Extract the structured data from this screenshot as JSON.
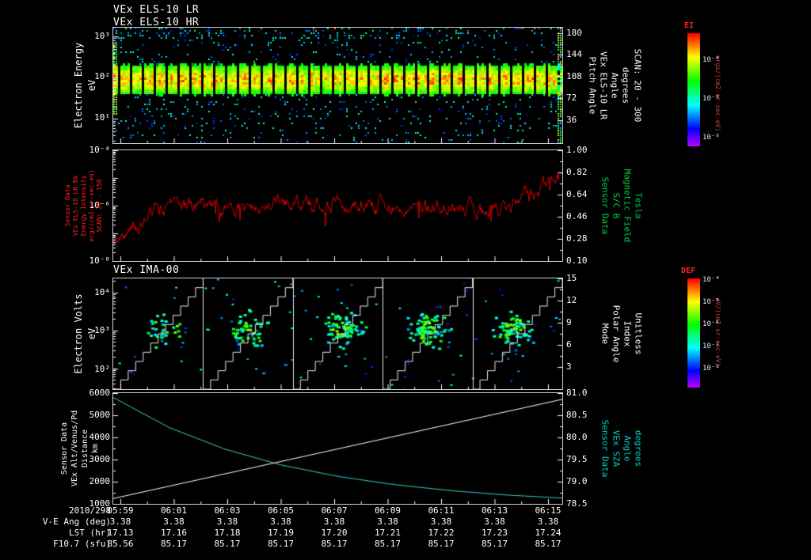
{
  "header": {
    "titles_els": [
      "VEx ELS-10 LR",
      "VEx ELS-10 HR"
    ],
    "title_ima": "VEx IMA-00"
  },
  "colors": {
    "red_line": "#cc0000",
    "red_label": "#ff2222",
    "green_label": "#00cc44",
    "cyan_label": "#00cccc",
    "unit_red": "#cc4444",
    "white": "#ffffff"
  },
  "panels": {
    "els": {
      "left_label": [
        "Electron Energy",
        "eV"
      ],
      "left_ticks": [
        "10³",
        "10²",
        "10¹"
      ],
      "right_ticks": [
        "180",
        "144",
        "108",
        "72",
        "36"
      ],
      "right_label": [
        "Pitch Angle",
        "VEx ELS-10 LR",
        "Angle",
        "degrees",
        "SCAN: 20 - 300"
      ]
    },
    "bk": {
      "left_label": [
        "Sensor Data",
        "VEx ELS-10 LR Bk",
        "Energy Intensity",
        "erg/(cm2-sr-sec-eV)",
        "SCAN: 20 - 150"
      ],
      "left_ticks": [
        "10⁻⁴",
        "10⁻⁶",
        "10⁻⁸"
      ],
      "right_ticks": [
        "1.00",
        "0.82",
        "0.64",
        "0.46",
        "0.28",
        "0.10"
      ],
      "right_label": [
        "Sensor Data",
        "S/C B",
        "Magnetic Field",
        "Tesla"
      ]
    },
    "ima": {
      "left_label": [
        "Electron Volts",
        "eV"
      ],
      "left_ticks": [
        "10⁴",
        "10³",
        "10²"
      ],
      "right_ticks": [
        "15",
        "12",
        "9",
        "6",
        "3"
      ],
      "right_label": [
        "Mode",
        "Polar Angle",
        "Index",
        "Unitless"
      ]
    },
    "traj": {
      "left_label": [
        "Sensor Data",
        "VEx Alt/Venus/Pd",
        "Distance",
        "km"
      ],
      "left_ticks": [
        "6000",
        "5000",
        "4000",
        "3000",
        "2000",
        "1000"
      ],
      "right_ticks": [
        "81.0",
        "80.5",
        "80.0",
        "79.5",
        "79.0",
        "78.5"
      ],
      "right_label": [
        "Sensor Data",
        "VEx SZA",
        "Angle",
        "degrees"
      ]
    }
  },
  "colorbars": [
    {
      "label": "EI",
      "ticks": [
        "10⁻⁴",
        "10⁻⁶",
        "10⁻⁸"
      ],
      "units": "ergs/(cm2-sr-sec-eV)"
    },
    {
      "label": "DEF",
      "ticks": [
        "10⁻⁴",
        "10⁻⁵",
        "10⁻⁶",
        "10⁻⁷",
        "10⁻⁸"
      ],
      "units": "eV/(cm2-sr-sec-eV)"
    }
  ],
  "time_axis": {
    "date": "2010/298",
    "ticks": [
      "05:59",
      "06:01",
      "06:03",
      "06:05",
      "06:07",
      "06:09",
      "06:11",
      "06:13",
      "06:15"
    ]
  },
  "table": {
    "rows": [
      {
        "label": "V-E Ang (deg)",
        "values": [
          "3.38",
          "3.38",
          "3.38",
          "3.38",
          "3.38",
          "3.38",
          "3.38",
          "3.38",
          "3.38"
        ]
      },
      {
        "label": "LST (hr)",
        "values": [
          "17.13",
          "17.16",
          "17.18",
          "17.19",
          "17.20",
          "17.21",
          "17.22",
          "17.23",
          "17.24"
        ]
      },
      {
        "label": "F10.7 (sfu)",
        "values": [
          "85.56",
          "85.17",
          "85.17",
          "85.17",
          "85.17",
          "85.17",
          "85.17",
          "85.17",
          "85.17"
        ]
      }
    ]
  },
  "chart_data": [
    {
      "type": "heatmap",
      "title": "VEx ELS-10 LR / VEx ELS-10 HR electron energy spectrogram",
      "ylabel": "Electron Energy (eV)",
      "yscale": "log",
      "yticks": [
        10,
        100,
        1000
      ],
      "ylim": [
        2.5,
        1600
      ],
      "y2label": "Pitch Angle (degrees), SCAN: 20 - 300",
      "y2ticks": [
        36,
        72,
        108,
        144,
        180
      ],
      "x_range": [
        "05:59",
        "06:16"
      ],
      "colorbar": {
        "label": "EI",
        "units": "ergs/(cm2-sr-sec-eV)",
        "ticks": [
          0.0001,
          1e-06,
          1e-08
        ]
      },
      "features": "continuous intense band ~30-300 eV (green/yellow with sporadic red), sparse cyan-blue speckle at other energies, periodic vertical telemetry gaps, bright column at right edge",
      "band_center_frac": 0.44,
      "band_sigma_frac": 0.09
    },
    {
      "type": "line",
      "name": "VEx ELS-10 LR Bk Energy Intensity, SCAN: 20 - 150",
      "units": "erg/(cm2-sr-sec-eV)",
      "yscale": "log",
      "ylim": [
        1e-08,
        0.0001
      ],
      "color": "#cc0000",
      "y2label": "S/C B Magnetic Field (Tesla)",
      "y2lim": [
        0.1,
        1.0
      ],
      "y2ticks": [
        0.1,
        0.28,
        0.46,
        0.64,
        0.82,
        1.0
      ],
      "x_samples": [
        "05:59",
        "06:01",
        "06:03",
        "06:05",
        "06:07",
        "06:09",
        "06:11",
        "06:13",
        "06:15"
      ],
      "approx_values": [
        5e-08,
        1.2e-06,
        8e-07,
        1.1e-06,
        1.3e-06,
        9e-07,
        1e-06,
        7e-07,
        1.5e-05
      ],
      "approx_log10": [
        -7.3,
        -5.92,
        -6.1,
        -5.96,
        -5.89,
        -6.05,
        -6.0,
        -6.15,
        -4.82
      ],
      "character": "noisy trace fluctuating ~1 decade around 1e-6, low at start, sharp rise at right edge"
    },
    {
      "type": "heatmap",
      "title": "VEx IMA-00 ion spectrogram",
      "ylabel": "Electron Volts (eV)",
      "yscale": "log",
      "yticks": [
        100,
        1000,
        10000
      ],
      "y2label": "Mode / Polar Angle Index (Unitless)",
      "y2ticks": [
        3,
        6,
        9,
        12,
        15
      ],
      "features": "5 sweep segments separated by white vertical lines; white staircase = polar angle index ramp per segment; blue squares with green cores clustered ~300-3000 eV mid-segment",
      "segments": 5,
      "cluster_counts": [
        30,
        50,
        75,
        85,
        75
      ]
    },
    {
      "type": "line",
      "ylim": [
        1000,
        6000
      ],
      "y2lim": [
        78.5,
        81.0
      ],
      "series": [
        {
          "name": "VEx Alt/Venus/Pd Distance (km)",
          "color": "#33cccc",
          "axis": "left",
          "x": [
            "05:59",
            "06:01",
            "06:03",
            "06:05",
            "06:07",
            "06:09",
            "06:11",
            "06:13",
            "06:15"
          ],
          "values": [
            5800,
            4440,
            3460,
            2750,
            2240,
            1870,
            1600,
            1400,
            1260
          ]
        },
        {
          "name": "VEx SZA Angle (degrees)",
          "color": "#ffffff",
          "axis": "right",
          "x": [
            "05:59",
            "06:01",
            "06:03",
            "06:05",
            "06:07",
            "06:09",
            "06:11",
            "06:13",
            "06:15"
          ],
          "values": [
            78.62,
            78.9,
            79.18,
            79.46,
            79.74,
            80.02,
            80.3,
            80.58,
            80.86
          ]
        }
      ]
    }
  ]
}
